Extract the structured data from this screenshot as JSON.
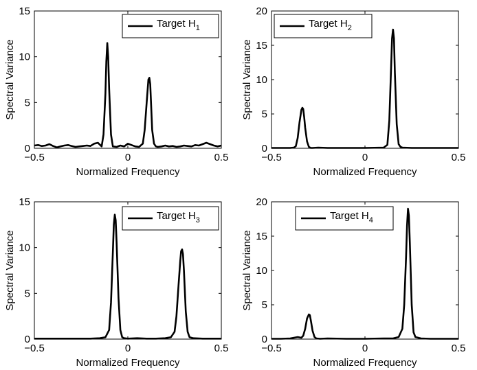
{
  "chart_data": [
    {
      "type": "line",
      "xlabel": "Normalized Frequency",
      "ylabel": "Spectral Variance",
      "xlim": [
        -0.5,
        0.5
      ],
      "ylim": [
        0,
        15
      ],
      "xticks": [
        "−0.5",
        "0",
        "0.5"
      ],
      "yticks": [
        "0",
        "5",
        "10",
        "15"
      ],
      "legend": {
        "position": "top-right",
        "label": "Target H",
        "subscript": "1"
      },
      "series": [
        {
          "name": "Target H1",
          "x": [
            -0.5,
            -0.48,
            -0.46,
            -0.44,
            -0.42,
            -0.4,
            -0.38,
            -0.36,
            -0.34,
            -0.32,
            -0.3,
            -0.28,
            -0.26,
            -0.24,
            -0.22,
            -0.2,
            -0.18,
            -0.16,
            -0.15,
            -0.14,
            -0.13,
            -0.12,
            -0.115,
            -0.11,
            -0.105,
            -0.1,
            -0.09,
            -0.08,
            -0.06,
            -0.04,
            -0.02,
            0,
            0.02,
            0.04,
            0.06,
            0.08,
            0.09,
            0.1,
            0.11,
            0.115,
            0.12,
            0.125,
            0.13,
            0.14,
            0.15,
            0.16,
            0.18,
            0.2,
            0.22,
            0.24,
            0.26,
            0.28,
            0.3,
            0.32,
            0.34,
            0.36,
            0.38,
            0.4,
            0.42,
            0.44,
            0.46,
            0.48,
            0.5
          ],
          "y": [
            0.3,
            0.35,
            0.25,
            0.3,
            0.45,
            0.25,
            0.1,
            0.2,
            0.3,
            0.35,
            0.25,
            0.15,
            0.2,
            0.25,
            0.3,
            0.25,
            0.5,
            0.6,
            0.4,
            0.2,
            1.5,
            6.0,
            9.5,
            11.5,
            10.0,
            6.5,
            1.5,
            0.2,
            0.15,
            0.3,
            0.2,
            0.5,
            0.35,
            0.2,
            0.15,
            0.5,
            2.0,
            4.8,
            7.5,
            7.7,
            7.0,
            4.5,
            2.0,
            0.5,
            0.2,
            0.15,
            0.2,
            0.3,
            0.2,
            0.25,
            0.15,
            0.2,
            0.3,
            0.25,
            0.2,
            0.35,
            0.3,
            0.45,
            0.6,
            0.45,
            0.3,
            0.2,
            0.3
          ]
        }
      ]
    },
    {
      "type": "line",
      "xlabel": "Normalized Frequency",
      "ylabel": "Spectral Variance",
      "xlim": [
        -0.5,
        0.5
      ],
      "ylim": [
        0,
        20
      ],
      "xticks": [
        "−0.5",
        "0",
        "0.5"
      ],
      "yticks": [
        "0",
        "5",
        "10",
        "15",
        "20"
      ],
      "legend": {
        "position": "top-left",
        "label": "Target H",
        "subscript": "2"
      },
      "series": [
        {
          "name": "Target H2",
          "x": [
            -0.5,
            -0.45,
            -0.4,
            -0.38,
            -0.37,
            -0.36,
            -0.35,
            -0.34,
            -0.335,
            -0.33,
            -0.325,
            -0.32,
            -0.31,
            -0.3,
            -0.29,
            -0.28,
            -0.25,
            -0.2,
            -0.1,
            0,
            0.1,
            0.12,
            0.13,
            0.14,
            0.145,
            0.15,
            0.155,
            0.16,
            0.17,
            0.18,
            0.19,
            0.2,
            0.25,
            0.3,
            0.4,
            0.5
          ],
          "y": [
            0.05,
            0.05,
            0.05,
            0.1,
            0.3,
            1.5,
            3.8,
            5.6,
            5.9,
            5.7,
            4.5,
            3.0,
            1.0,
            0.2,
            0.05,
            0.05,
            0.1,
            0.05,
            0.05,
            0.05,
            0.1,
            0.5,
            4.0,
            12.0,
            16.0,
            17.3,
            16.0,
            11.0,
            3.5,
            0.6,
            0.2,
            0.1,
            0.05,
            0.05,
            0.05,
            0.05
          ]
        }
      ]
    },
    {
      "type": "line",
      "xlabel": "Normalized Frequency",
      "ylabel": "Spectral Variance",
      "xlim": [
        -0.5,
        0.5
      ],
      "ylim": [
        0,
        15
      ],
      "xticks": [
        "−0.5",
        "0",
        "0.5"
      ],
      "yticks": [
        "0",
        "5",
        "10",
        "15"
      ],
      "legend": {
        "position": "top-right",
        "label": "Target H",
        "subscript": "3"
      },
      "series": [
        {
          "name": "Target H3",
          "x": [
            -0.5,
            -0.4,
            -0.3,
            -0.2,
            -0.15,
            -0.12,
            -0.1,
            -0.09,
            -0.08,
            -0.075,
            -0.07,
            -0.065,
            -0.06,
            -0.05,
            -0.04,
            -0.03,
            -0.02,
            0,
            0.05,
            0.1,
            0.15,
            0.2,
            0.23,
            0.25,
            0.26,
            0.27,
            0.28,
            0.285,
            0.29,
            0.295,
            0.3,
            0.31,
            0.32,
            0.33,
            0.35,
            0.4,
            0.45,
            0.5
          ],
          "y": [
            0.05,
            0.05,
            0.05,
            0.05,
            0.1,
            0.2,
            1.0,
            4.0,
            9.5,
            12.5,
            13.6,
            13.0,
            10.5,
            4.5,
            1.0,
            0.2,
            0.1,
            0.05,
            0.1,
            0.05,
            0.05,
            0.1,
            0.2,
            0.8,
            2.5,
            5.5,
            8.5,
            9.6,
            9.8,
            9.3,
            7.5,
            3.0,
            0.8,
            0.2,
            0.1,
            0.05,
            0.05,
            0.05
          ]
        }
      ]
    },
    {
      "type": "line",
      "xlabel": "Normalized Frequency",
      "ylabel": "Spectral Variance",
      "xlim": [
        -0.5,
        0.5
      ],
      "ylim": [
        0,
        20
      ],
      "xticks": [
        "−0.5",
        "0",
        "0.5"
      ],
      "yticks": [
        "0",
        "5",
        "10",
        "15",
        "20"
      ],
      "legend": {
        "position": "top-left",
        "label": "Target H",
        "subscript": "4"
      },
      "series": [
        {
          "name": "Target H4",
          "x": [
            -0.5,
            -0.45,
            -0.4,
            -0.36,
            -0.34,
            -0.33,
            -0.32,
            -0.31,
            -0.3,
            -0.295,
            -0.29,
            -0.28,
            -0.27,
            -0.26,
            -0.24,
            -0.2,
            -0.1,
            0,
            0.1,
            0.15,
            0.18,
            0.2,
            0.21,
            0.22,
            0.225,
            0.23,
            0.235,
            0.24,
            0.25,
            0.26,
            0.27,
            0.3,
            0.35,
            0.4,
            0.5
          ],
          "y": [
            0.05,
            0.05,
            0.1,
            0.3,
            0.2,
            0.5,
            1.5,
            3.0,
            3.6,
            3.5,
            2.8,
            1.2,
            0.3,
            0.1,
            0.05,
            0.1,
            0.05,
            0.05,
            0.1,
            0.1,
            0.3,
            1.5,
            5.0,
            12.0,
            16.5,
            19.0,
            18.0,
            14.0,
            5.0,
            1.0,
            0.3,
            0.1,
            0.05,
            0.05,
            0.05
          ]
        }
      ]
    }
  ]
}
